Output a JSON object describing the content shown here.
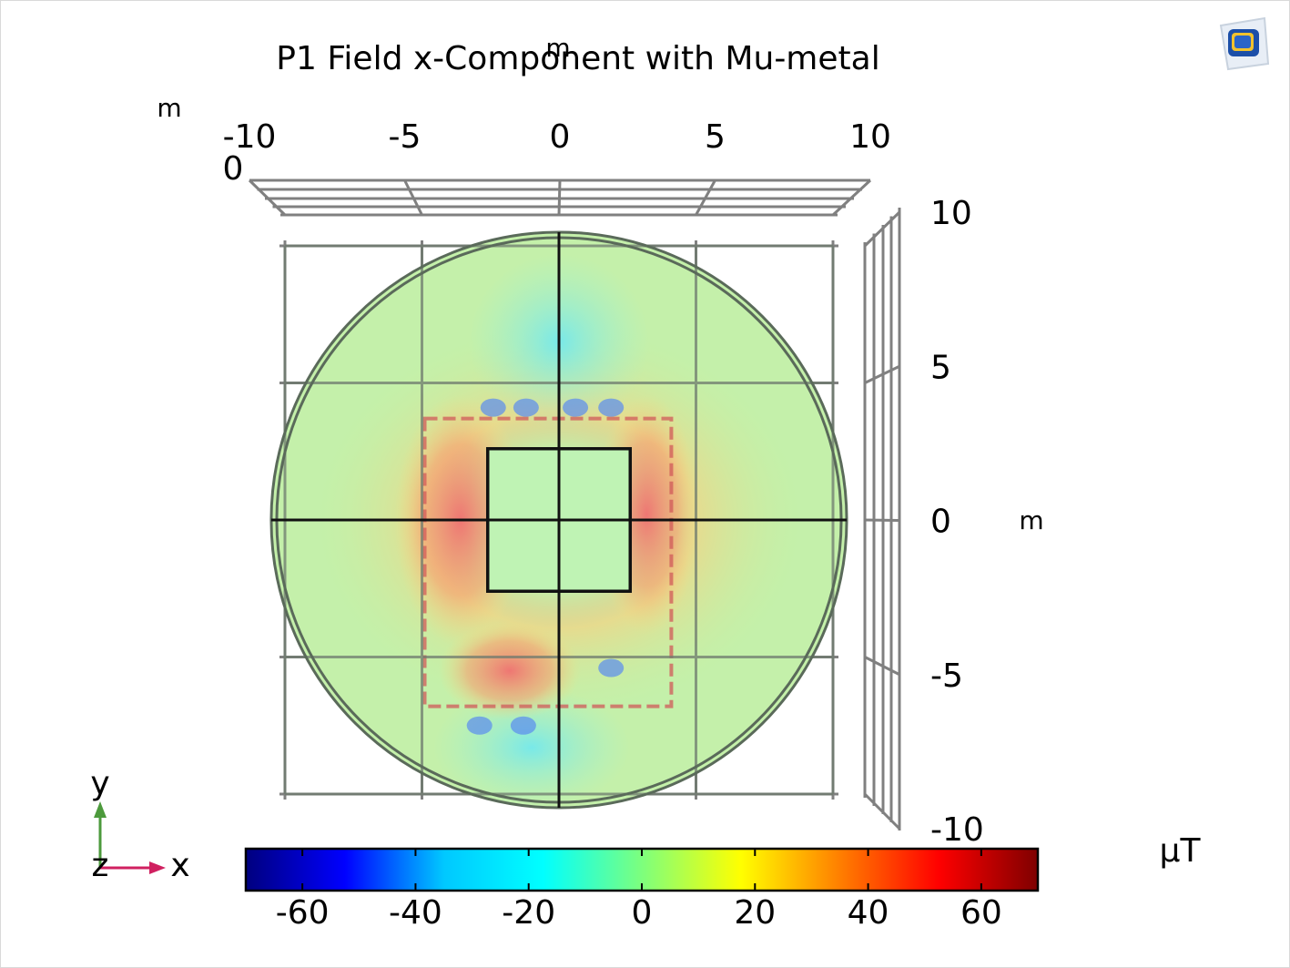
{
  "chart_data": {
    "type": "heatmap",
    "title": "P1 Field x-Component with Mu-metal",
    "x_axis": {
      "unit_label": "m",
      "range": [
        -10,
        10
      ],
      "ticks": [
        "-10",
        "-5",
        "0",
        "5",
        "10"
      ]
    },
    "y_axis": {
      "unit_label": "m",
      "range": [
        -10,
        10
      ],
      "ticks": [
        "10",
        "5",
        "0",
        "-5",
        "-10"
      ]
    },
    "z_axis": {
      "unit_label": "m",
      "tick": "0",
      "stray_label": "m"
    },
    "colorbar": {
      "unit": "μT",
      "range": [
        -70,
        70
      ],
      "ticks": [
        "-60",
        "-40",
        "-20",
        "0",
        "20",
        "40",
        "60"
      ],
      "tick_values": [
        -60,
        -40,
        -20,
        0,
        20,
        40,
        60
      ],
      "colormap": [
        "#00007f",
        "#0000ff",
        "#00c8ff",
        "#00ffff",
        "#7dff7d",
        "#ffff00",
        "#ff7f00",
        "#ff0000",
        "#7f0000"
      ]
    },
    "geometry": {
      "domain_radius": 10.5,
      "shield_box": {
        "x": [
          -4.9,
          4.1
        ],
        "y": [
          -6.8,
          3.7
        ]
      },
      "inner_box": {
        "x": [
          -2.6,
          2.6
        ],
        "y": [
          -2.6,
          2.6
        ]
      }
    },
    "grid": true
  },
  "triad": {
    "y": "y",
    "z": "z",
    "x": "x",
    "colors": {
      "y": "#4c9a3c",
      "x": "#d02060"
    }
  },
  "logo": {
    "name": "comsol-logo-icon"
  }
}
